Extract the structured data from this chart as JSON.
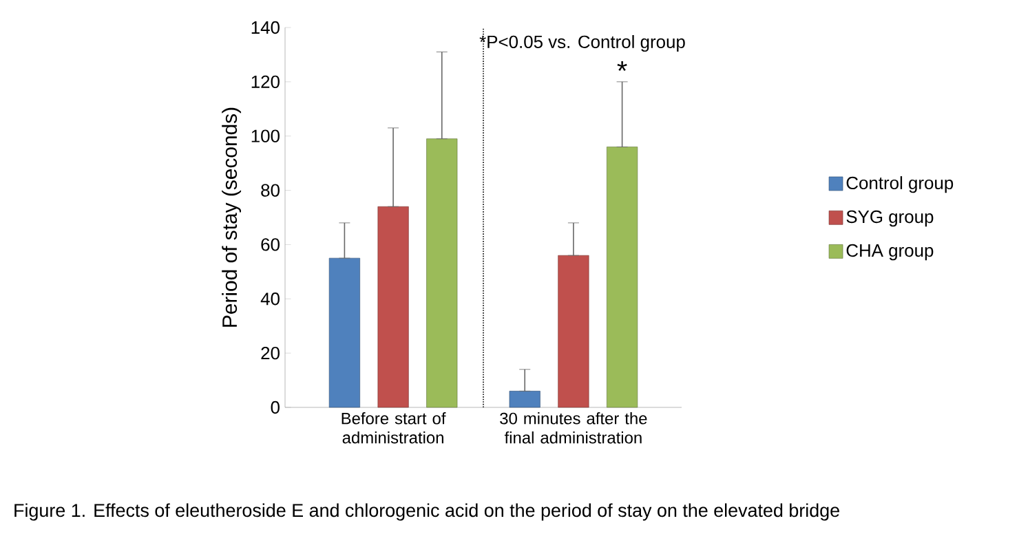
{
  "chart_data": {
    "type": "bar",
    "ylabel": "Period of stay (seconds)",
    "categories": [
      "Before start of administration",
      "30 minutes after the final administration"
    ],
    "series": [
      {
        "name": "Control group",
        "color": "#4f81bd",
        "values": [
          55,
          6
        ],
        "errors": [
          [
            55,
            68
          ],
          [
            6,
            14
          ]
        ]
      },
      {
        "name": "SYG group",
        "color": "#c0504d",
        "values": [
          74,
          56
        ],
        "errors": [
          [
            74,
            103
          ],
          [
            56,
            68
          ]
        ]
      },
      {
        "name": "CHA group",
        "color": "#9bbb59",
        "values": [
          99,
          96
        ],
        "errors": [
          [
            99,
            131
          ],
          [
            96,
            120
          ]
        ]
      }
    ],
    "ylim": [
      0,
      140
    ],
    "yticks": [
      0,
      20,
      40,
      60,
      80,
      100,
      120,
      140
    ],
    "grid": false,
    "legend": "right",
    "annotations": [
      "*P<0.05 vs. Control group",
      "*",
      "Figure 1. Effects of eleutheroside E and chlorogenic acid on the period of stay on the elevated bridge"
    ]
  }
}
